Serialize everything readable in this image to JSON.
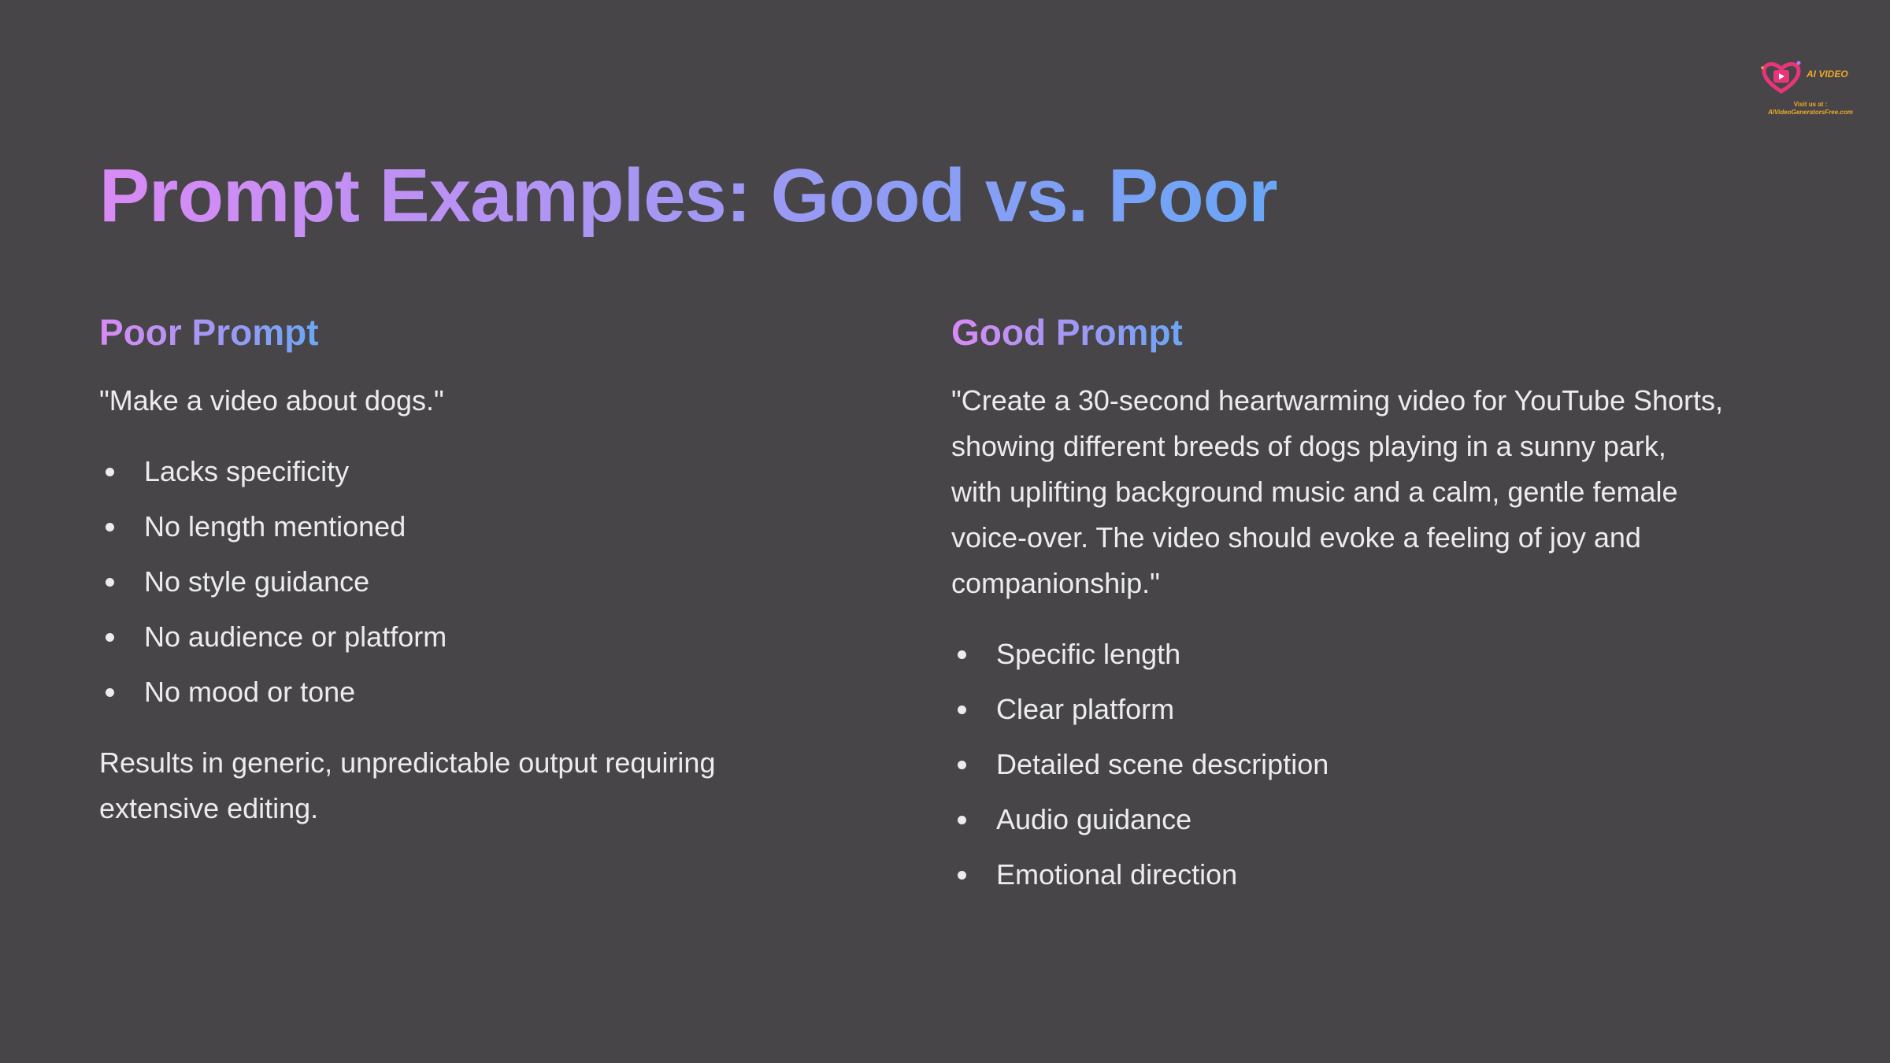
{
  "slide": {
    "title": "Prompt Examples: Good vs. Poor"
  },
  "poor": {
    "heading": "Poor Prompt",
    "quote": "\"Make a video about dogs.\"",
    "bullets": [
      "Lacks specificity",
      "No length mentioned",
      "No style guidance",
      "No audience or platform",
      "No mood or tone"
    ],
    "footnote": "Results in generic, unpredictable output requiring extensive editing."
  },
  "good": {
    "heading": "Good Prompt",
    "quote": "\"Create a 30-second heartwarming video for YouTube Shorts, showing different breeds of dogs playing in a sunny park, with uplifting background music and a calm, gentle female voice-over. The video should evoke a feeling of joy and companionship.\"",
    "bullets": [
      "Specific length",
      "Clear platform",
      "Detailed scene description",
      "Audio guidance",
      "Emotional direction"
    ]
  },
  "logo": {
    "name": "AI VIDEO",
    "visit_text": "Visit us at :",
    "site": "AIVideoGeneratorsFree.com",
    "icon": "video-play-heart-icon"
  },
  "colors": {
    "background": "#474547",
    "text": "#ececee",
    "gradient_start": "#d98af5",
    "gradient_mid": "#a996f3",
    "gradient_end": "#6aa6f7",
    "logo_orange": "#f0a92a",
    "logo_pink": "#e8357a"
  }
}
